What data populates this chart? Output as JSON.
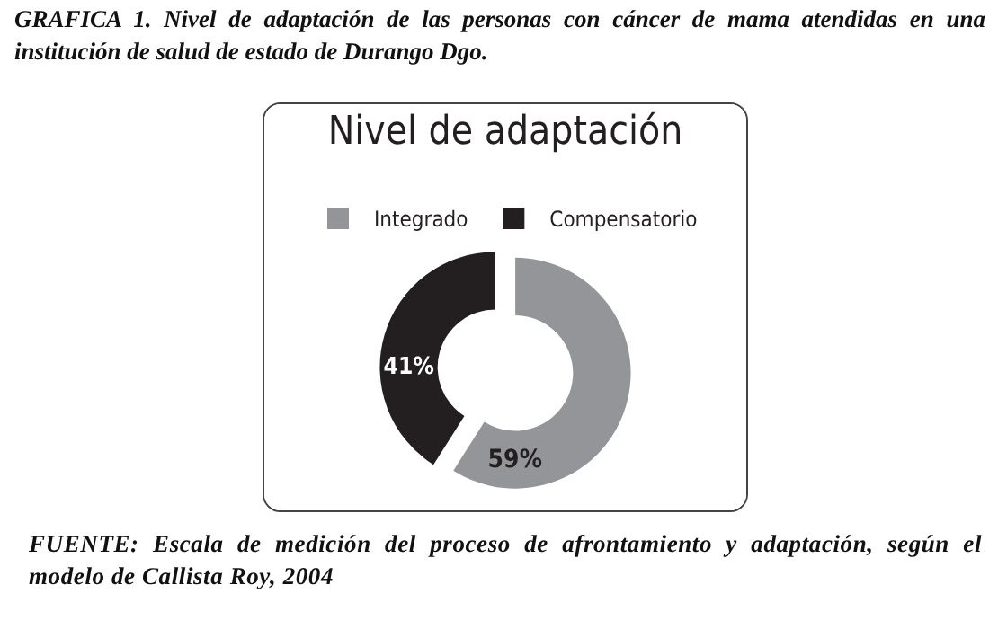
{
  "chart_data": {
    "type": "donut",
    "title": "Nivel de adaptación",
    "categories": [
      "Integrado",
      "Compensatorio"
    ],
    "values": [
      59,
      41
    ],
    "colors": [
      "#939598",
      "#231f20"
    ],
    "value_labels": [
      "59%",
      "41%"
    ],
    "legend": "top",
    "annotations": [
      "GRAFICA 1. Nivel de adaptación de las personas con cáncer de mama atendidas en una institución de salud  de estado de Durango Dgo.",
      "FUENTE: Escala de medición del proceso de afrontamiento y adaptación, según el modelo de Callista Roy, 2004"
    ]
  }
}
